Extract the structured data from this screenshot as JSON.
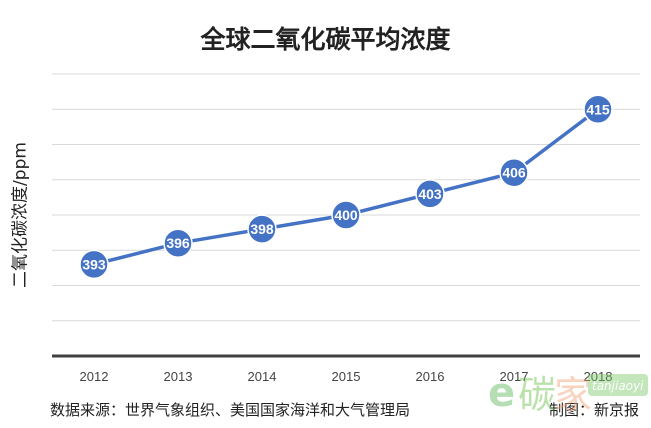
{
  "chart_data": {
    "type": "line",
    "title": "全球二氧化碳平均浓度",
    "xlabel": "",
    "ylabel": "二氧化碳浓度/ppm",
    "categories": [
      "2012",
      "2013",
      "2014",
      "2015",
      "2016",
      "2017",
      "2018"
    ],
    "values": [
      393,
      396,
      398,
      400,
      403,
      406,
      415
    ],
    "ylim": [
      380,
      420
    ],
    "grid": true,
    "color": "#4472C4"
  },
  "footer": {
    "source": "数据来源：世界气象组织、美国国家海洋和大气管理局",
    "credit": "制图：新京报"
  },
  "watermark": "碳家 tanjiaoyi"
}
